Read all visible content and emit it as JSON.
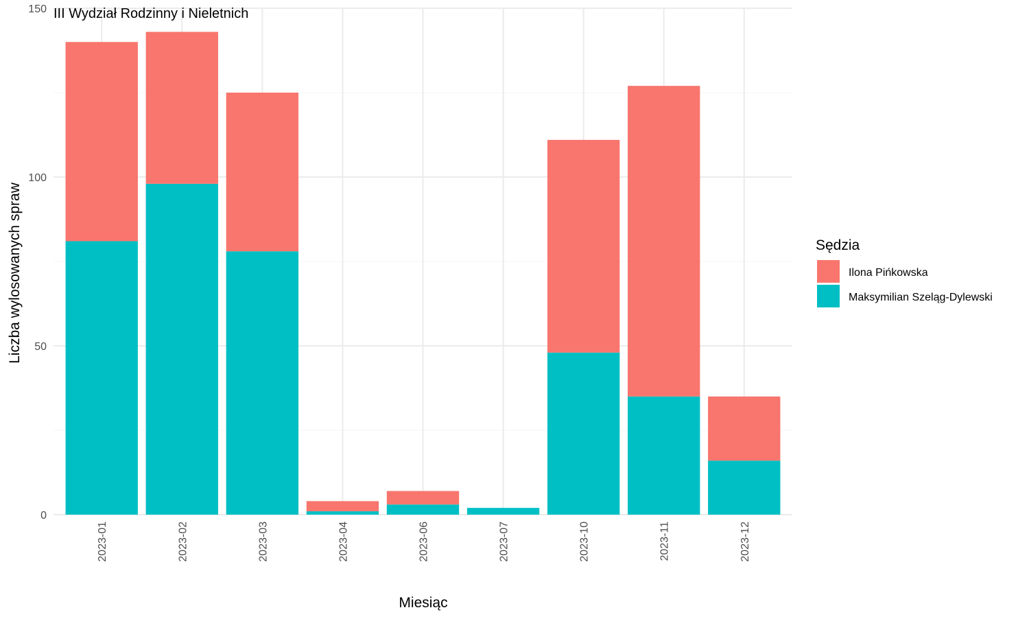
{
  "chart_data": {
    "type": "bar",
    "stacked": true,
    "title": "III Wydział Rodzinny i Nieletnich",
    "xlabel": "Miesiąc",
    "ylabel": "Liczba wylosowanych spraw",
    "ylim": [
      0,
      150
    ],
    "yticks": [
      0,
      50,
      100,
      150
    ],
    "grid": true,
    "legend_title": "Sędzia",
    "legend_position": "right",
    "categories": [
      "2023-01",
      "2023-02",
      "2023-03",
      "2023-04",
      "2023-06",
      "2023-07",
      "2023-10",
      "2023-11",
      "2023-12"
    ],
    "series": [
      {
        "name": "Maksymilian Szeląg-Dylewski",
        "color": "#00BFC4",
        "values": [
          81,
          98,
          78,
          1,
          3,
          2,
          48,
          35,
          16
        ]
      },
      {
        "name": "Ilona Pińkowska",
        "color": "#F8766D",
        "values": [
          59,
          45,
          47,
          3,
          4,
          0,
          63,
          92,
          19
        ]
      }
    ],
    "legend_order": [
      "Ilona Pińkowska",
      "Maksymilian Szeląg-Dylewski"
    ]
  }
}
